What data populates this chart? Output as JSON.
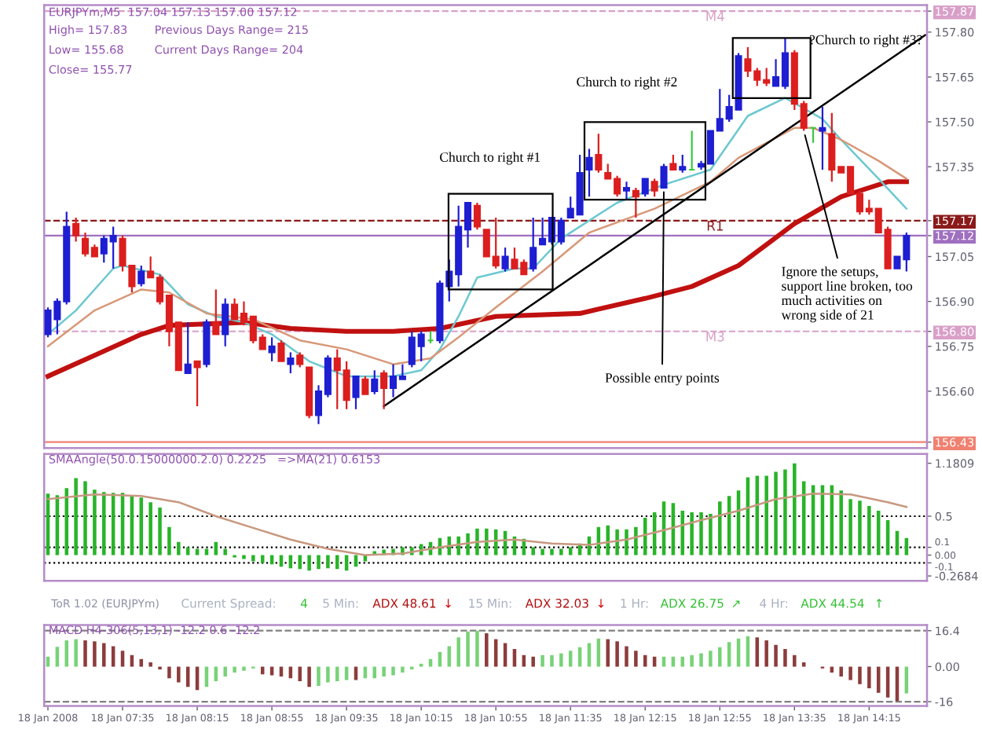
{
  "chart_data": [
    {
      "type": "candlestick",
      "title": "EURJPYm,M5  157.04 157.13 157.00 157.12",
      "tick_labels": "y",
      "annotations": [
        "High= 157.83",
        "Previous Days Range= 215",
        "Low= 155.68",
        "Current Days Range= 204",
        "Close= 155.77",
        "Church to right #1",
        "Church to right #2",
        "?Church to right #3?",
        {
          "text": "Possible entry points",
          "x": "2008-01-18T12:25",
          "y": 157.28
        },
        {
          "text": "Ignore the setups,\nsupport line broken, too\nmuch activities on\nwrong side of 21",
          "x": "2008-01-18T13:40",
          "y": 157.47
        }
      ],
      "x": [
        "2008-01-18T06:55",
        "2008-01-18T07:00",
        "2008-01-18T07:05",
        "2008-01-18T07:10",
        "2008-01-18T07:15",
        "2008-01-18T07:20",
        "2008-01-18T07:25",
        "2008-01-18T07:30",
        "2008-01-18T07:35",
        "2008-01-18T07:40",
        "2008-01-18T07:45",
        "2008-01-18T07:50",
        "2008-01-18T07:55",
        "2008-01-18T08:00",
        "2008-01-18T08:05",
        "2008-01-18T08:10",
        "2008-01-18T08:15",
        "2008-01-18T08:20",
        "2008-01-18T08:25",
        "2008-01-18T08:30",
        "2008-01-18T08:35",
        "2008-01-18T08:40",
        "2008-01-18T08:45",
        "2008-01-18T08:50",
        "2008-01-18T08:55",
        "2008-01-18T09:00",
        "2008-01-18T09:05",
        "2008-01-18T09:10",
        "2008-01-18T09:15",
        "2008-01-18T09:20",
        "2008-01-18T09:25",
        "2008-01-18T09:30",
        "2008-01-18T09:35",
        "2008-01-18T09:40",
        "2008-01-18T09:45",
        "2008-01-18T09:50",
        "2008-01-18T09:55",
        "2008-01-18T10:00",
        "2008-01-18T10:05",
        "2008-01-18T10:10",
        "2008-01-18T10:15",
        "2008-01-18T10:20",
        "2008-01-18T10:25",
        "2008-01-18T10:30",
        "2008-01-18T10:35",
        "2008-01-18T10:40",
        "2008-01-18T10:45",
        "2008-01-18T10:50",
        "2008-01-18T10:55",
        "2008-01-18T11:00",
        "2008-01-18T11:05",
        "2008-01-18T11:10",
        "2008-01-18T11:15",
        "2008-01-18T11:20",
        "2008-01-18T11:25",
        "2008-01-18T11:30",
        "2008-01-18T11:35",
        "2008-01-18T11:40",
        "2008-01-18T11:45",
        "2008-01-18T11:50",
        "2008-01-18T11:55",
        "2008-01-18T12:00",
        "2008-01-18T12:05",
        "2008-01-18T12:10",
        "2008-01-18T12:15",
        "2008-01-18T12:20",
        "2008-01-18T12:25",
        "2008-01-18T12:30",
        "2008-01-18T12:35",
        "2008-01-18T12:40",
        "2008-01-18T12:45",
        "2008-01-18T12:50",
        "2008-01-18T12:55",
        "2008-01-18T13:00",
        "2008-01-18T13:05",
        "2008-01-18T13:10",
        "2008-01-18T13:15",
        "2008-01-18T13:20",
        "2008-01-18T13:25",
        "2008-01-18T13:30",
        "2008-01-18T13:35",
        "2008-01-18T13:40",
        "2008-01-18T13:45",
        "2008-01-18T13:50",
        "2008-01-18T13:55",
        "2008-01-18T14:00",
        "2008-01-18T14:05",
        "2008-01-18T14:10",
        "2008-01-18T14:15",
        "2008-01-18T14:20",
        "2008-01-18T14:25",
        "2008-01-18T14:30",
        "2008-01-18T14:35"
      ],
      "ohlc": [
        [
          156.79,
          156.88,
          156.78,
          156.87
        ],
        [
          156.84,
          156.91,
          156.79,
          156.9
        ],
        [
          156.9,
          157.2,
          156.89,
          157.15
        ],
        [
          157.16,
          157.18,
          157.1,
          157.12
        ],
        [
          157.11,
          157.13,
          157.05,
          157.06
        ],
        [
          157.08,
          157.09,
          157.05,
          157.05
        ],
        [
          157.06,
          157.12,
          157.03,
          157.11
        ],
        [
          157.1,
          157.15,
          157.01,
          157.12
        ],
        [
          157.11,
          157.12,
          157.0,
          157.02
        ],
        [
          157.02,
          157.02,
          156.93,
          156.95
        ],
        [
          156.96,
          157.02,
          156.95,
          157.0
        ],
        [
          157.0,
          157.05,
          156.98,
          156.98
        ],
        [
          156.98,
          156.99,
          156.89,
          156.9
        ],
        [
          156.92,
          156.92,
          156.75,
          156.8
        ],
        [
          156.83,
          156.83,
          156.67,
          156.67
        ],
        [
          156.66,
          156.83,
          156.66,
          156.69
        ],
        [
          156.7,
          156.7,
          156.55,
          156.68
        ],
        [
          156.69,
          156.84,
          156.68,
          156.83
        ],
        [
          156.83,
          156.94,
          156.79,
          156.79
        ],
        [
          156.79,
          156.91,
          156.75,
          156.89
        ],
        [
          156.89,
          156.91,
          156.84,
          156.84
        ],
        [
          156.86,
          156.9,
          156.82,
          156.83
        ],
        [
          156.85,
          156.85,
          156.76,
          156.77
        ],
        [
          156.78,
          156.79,
          156.74,
          156.74
        ],
        [
          156.73,
          156.78,
          156.7,
          156.75
        ],
        [
          156.76,
          156.77,
          156.7,
          156.7
        ],
        [
          156.69,
          156.73,
          156.66,
          156.71
        ],
        [
          156.72,
          156.73,
          156.68,
          156.69
        ],
        [
          156.68,
          156.68,
          156.51,
          156.52
        ],
        [
          156.52,
          156.62,
          156.49,
          156.6
        ],
        [
          156.59,
          156.72,
          156.58,
          156.71
        ],
        [
          156.71,
          156.74,
          156.54,
          156.67
        ],
        [
          156.67,
          156.7,
          156.54,
          156.57
        ],
        [
          156.58,
          156.65,
          156.54,
          156.65
        ],
        [
          156.64,
          156.65,
          156.59,
          156.59
        ],
        [
          156.6,
          156.67,
          156.59,
          156.64
        ],
        [
          156.66,
          156.67,
          156.54,
          156.61
        ],
        [
          156.61,
          156.69,
          156.58,
          156.65
        ],
        [
          156.64,
          156.69,
          156.64,
          156.65
        ],
        [
          156.69,
          156.8,
          156.68,
          156.78
        ],
        [
          156.75,
          156.8,
          156.7,
          156.79
        ],
        [
          156.77,
          156.8,
          156.76,
          156.77
        ],
        [
          156.77,
          156.97,
          156.76,
          156.96
        ],
        [
          156.95,
          157.04,
          156.9,
          157.0
        ],
        [
          156.99,
          157.22,
          156.95,
          157.15
        ],
        [
          157.14,
          157.23,
          157.08,
          157.23
        ],
        [
          157.22,
          157.23,
          157.14,
          157.15
        ],
        [
          157.14,
          157.14,
          157.05,
          157.05
        ],
        [
          157.05,
          157.18,
          157.01,
          157.02
        ],
        [
          157.01,
          157.08,
          157.0,
          157.05
        ],
        [
          157.04,
          157.08,
          157.01,
          157.01
        ],
        [
          157.03,
          157.04,
          156.99,
          156.99
        ],
        [
          157.01,
          157.18,
          157.0,
          157.08
        ],
        [
          157.09,
          157.18,
          157.09,
          157.11
        ],
        [
          157.1,
          157.18,
          157.09,
          157.18
        ],
        [
          157.1,
          157.18,
          157.09,
          157.17
        ],
        [
          157.18,
          157.25,
          157.18,
          157.21
        ],
        [
          157.19,
          157.39,
          157.19,
          157.33
        ],
        [
          157.34,
          157.41,
          157.25,
          157.38
        ],
        [
          157.39,
          157.46,
          157.33,
          157.34
        ],
        [
          157.33,
          157.36,
          157.31,
          157.31
        ],
        [
          157.31,
          157.32,
          157.25,
          157.26
        ],
        [
          157.27,
          157.3,
          157.24,
          157.28
        ],
        [
          157.27,
          157.28,
          157.18,
          157.25
        ],
        [
          157.26,
          157.31,
          157.25,
          157.31
        ],
        [
          157.3,
          157.31,
          157.25,
          157.27
        ],
        [
          157.28,
          157.36,
          157.28,
          157.35
        ],
        [
          157.36,
          157.39,
          157.34,
          157.34
        ],
        [
          157.34,
          157.39,
          157.33,
          157.35
        ],
        [
          157.34,
          157.47,
          157.34,
          157.34
        ],
        [
          157.35,
          157.37,
          157.34,
          157.36
        ],
        [
          157.36,
          157.47,
          157.36,
          157.47
        ],
        [
          157.47,
          157.61,
          157.47,
          157.51
        ],
        [
          157.51,
          157.59,
          157.5,
          157.55
        ],
        [
          157.54,
          157.73,
          157.54,
          157.72
        ],
        [
          157.71,
          157.75,
          157.65,
          157.67
        ],
        [
          157.67,
          157.68,
          157.62,
          157.64
        ],
        [
          157.64,
          157.68,
          157.62,
          157.63
        ],
        [
          157.62,
          157.71,
          157.62,
          157.65
        ],
        [
          157.62,
          157.78,
          157.61,
          157.73
        ],
        [
          157.73,
          157.74,
          157.54,
          157.56
        ],
        [
          157.56,
          157.57,
          157.47,
          157.48
        ],
        [
          157.48,
          157.48,
          157.43,
          157.48
        ],
        [
          157.47,
          157.55,
          157.34,
          157.48
        ],
        [
          157.46,
          157.53,
          157.3,
          157.34
        ],
        [
          157.35,
          157.35,
          157.33,
          157.33
        ],
        [
          157.35,
          157.35,
          157.26,
          157.26
        ],
        [
          157.26,
          157.27,
          157.19,
          157.2
        ],
        [
          157.21,
          157.24,
          157.19,
          157.2
        ],
        [
          157.21,
          157.21,
          157.13,
          157.13
        ],
        [
          157.14,
          157.15,
          157.01,
          157.01
        ],
        [
          157.01,
          157.05,
          157.01,
          157.05
        ],
        [
          157.04,
          157.13,
          157.0,
          157.12
        ]
      ],
      "colors": [
        "#1e1ed2",
        "#1e1ed2",
        "#1e1ed2",
        "#dc1e1e",
        "#dc1e1e",
        "#dc1e1e",
        "#1e1ed2",
        "#1e1ed2",
        "#dc1e1e",
        "#dc1e1e",
        "#1e1ed2",
        "#dc1e1e",
        "#dc1e1e",
        "#dc1e1e",
        "#dc1e1e",
        "#1e1ed2",
        "#dc1e1e",
        "#1e1ed2",
        "#dc1e1e",
        "#1e1ed2",
        "#dc1e1e",
        "#dc1e1e",
        "#dc1e1e",
        "#dc1e1e",
        "#1e1ed2",
        "#dc1e1e",
        "#1e1ed2",
        "#dc1e1e",
        "#dc1e1e",
        "#1e1ed2",
        "#1e1ed2",
        "#dc1e1e",
        "#dc1e1e",
        "#1e1ed2",
        "#dc1e1e",
        "#1e1ed2",
        "#dc1e1e",
        "#1e1ed2",
        "#1e1ed2",
        "#1e1ed2",
        "#1e1ed2",
        "#3cc83c",
        "#1e1ed2",
        "#1e1ed2",
        "#1e1ed2",
        "#1e1ed2",
        "#dc1e1e",
        "#dc1e1e",
        "#dc1e1e",
        "#1e1ed2",
        "#dc1e1e",
        "#dc1e1e",
        "#1e1ed2",
        "#1e1ed2",
        "#1e1ed2",
        "#1e1ed2",
        "#1e1ed2",
        "#1e1ed2",
        "#1e1ed2",
        "#dc1e1e",
        "#dc1e1e",
        "#dc1e1e",
        "#1e1ed2",
        "#dc1e1e",
        "#1e1ed2",
        "#dc1e1e",
        "#1e1ed2",
        "#dc1e1e",
        "#1e1ed2",
        "#3cc83c",
        "#1e1ed2",
        "#1e1ed2",
        "#1e1ed2",
        "#1e1ed2",
        "#1e1ed2",
        "#dc1e1e",
        "#dc1e1e",
        "#dc1e1e",
        "#1e1ed2",
        "#1e1ed2",
        "#dc1e1e",
        "#dc1e1e",
        "#3cc83c",
        "#1e1ed2",
        "#dc1e1e",
        "#dc1e1e",
        "#dc1e1e",
        "#dc1e1e",
        "#dc1e1e",
        "#dc1e1e",
        "#dc1e1e",
        "#1e1ed2",
        "#1e1ed2"
      ],
      "series": [
        {
          "type": "line",
          "color": "#c01010",
          "x": [
            "2008-01-18T06:55",
            "2008-01-18T07:20",
            "2008-01-18T07:45",
            "2008-01-18T08:00",
            "2008-01-18T08:40",
            "2008-01-18T09:05",
            "2008-01-18T09:35",
            "2008-01-18T10:00",
            "2008-01-18T10:25",
            "2008-01-18T10:55",
            "2008-01-18T11:40",
            "2008-01-18T12:15",
            "2008-01-18T12:40",
            "2008-01-18T13:05",
            "2008-01-18T13:35",
            "2008-01-18T14:00",
            "2008-01-18T14:25",
            "2008-01-18T14:35"
          ],
          "values": [
            156.65,
            156.72,
            156.79,
            156.82,
            156.83,
            156.81,
            156.8,
            156.8,
            156.81,
            156.85,
            156.86,
            156.91,
            156.95,
            157.02,
            157.16,
            157.25,
            157.3,
            157.3
          ]
        },
        {
          "type": "line",
          "color": "#6cc8d0",
          "x": [
            "2008-01-18T06:55",
            "2008-01-18T07:10",
            "2008-01-18T07:30",
            "2008-01-18T07:35",
            "2008-01-18T07:55",
            "2008-01-18T08:10",
            "2008-01-18T08:25",
            "2008-01-18T08:40",
            "2008-01-18T08:55",
            "2008-01-18T09:15",
            "2008-01-18T09:35",
            "2008-01-18T10:00",
            "2008-01-18T10:15",
            "2008-01-18T10:25",
            "2008-01-18T10:35",
            "2008-01-18T10:45",
            "2008-01-18T11:05",
            "2008-01-18T11:15",
            "2008-01-18T11:30",
            "2008-01-18T12:00",
            "2008-01-18T12:25",
            "2008-01-18T12:50",
            "2008-01-18T13:00",
            "2008-01-18T13:10",
            "2008-01-18T13:30",
            "2008-01-18T13:50",
            "2008-01-18T14:00",
            "2008-01-18T14:20",
            "2008-01-18T14:35"
          ],
          "values": [
            156.79,
            156.87,
            157.01,
            157.02,
            156.99,
            156.89,
            156.85,
            156.83,
            156.79,
            156.7,
            156.65,
            156.65,
            156.67,
            156.74,
            156.85,
            156.98,
            157.01,
            157.01,
            157.11,
            157.23,
            157.29,
            157.34,
            157.43,
            157.52,
            157.58,
            157.51,
            157.44,
            157.31,
            157.21
          ]
        },
        {
          "type": "line",
          "color": "#d89878",
          "x": [
            "2008-01-18T06:55",
            "2008-01-18T07:20",
            "2008-01-18T07:45",
            "2008-01-18T08:00",
            "2008-01-18T08:20",
            "2008-01-18T08:45",
            "2008-01-18T09:10",
            "2008-01-18T09:35",
            "2008-01-18T10:00",
            "2008-01-18T10:20",
            "2008-01-18T10:35",
            "2008-01-18T10:55",
            "2008-01-18T11:20",
            "2008-01-18T11:45",
            "2008-01-18T12:20",
            "2008-01-18T12:50",
            "2008-01-18T13:05",
            "2008-01-18T13:35",
            "2008-01-18T13:45",
            "2008-01-18T14:00",
            "2008-01-18T14:20",
            "2008-01-18T14:35"
          ],
          "values": [
            156.75,
            156.87,
            156.94,
            156.93,
            156.86,
            156.84,
            156.77,
            156.74,
            156.69,
            156.71,
            156.78,
            156.88,
            157.0,
            157.13,
            157.21,
            157.3,
            157.38,
            157.48,
            157.48,
            157.44,
            157.37,
            157.31
          ]
        },
        {
          "type": "line",
          "color": "#000000",
          "x": [
            "2008-01-18T09:55",
            "2008-01-18T14:45"
          ],
          "values": [
            156.55,
            157.79
          ]
        }
      ],
      "xlim": [
        "2008-01-18T06:53",
        "2008-01-18T14:46"
      ],
      "ylim": [
        156.41,
        157.89
      ],
      "yticks": [
        {
          "value": 157.87,
          "label": "157.87"
        },
        {
          "value": 157.8,
          "label": "157.80"
        },
        157.65,
        {
          "value": 157.5,
          "label": "157.50"
        },
        157.35,
        157.17,
        157.12,
        157.05,
        {
          "value": 156.9,
          "label": "156.90"
        },
        {
          "value": 156.8,
          "label": "156.80"
        },
        156.75,
        {
          "value": 156.6,
          "label": "156.60"
        },
        156.43
      ],
      "ref_lines": [
        {
          "axis": "y",
          "value": 157.87,
          "label": "M4",
          "color": "#d8a0c8",
          "line_style": "dashed"
        },
        {
          "axis": "y",
          "value": 157.17,
          "label": "R1",
          "color": "#8b1a1a",
          "line_style": "dashed"
        },
        {
          "axis": "y",
          "value": 157.12,
          "color": "#a070c0",
          "line_style": "solid"
        },
        {
          "axis": "y",
          "value": 156.8,
          "label": "M3",
          "color": "#d8a0c8",
          "line_style": "dashed"
        },
        {
          "axis": "y",
          "value": 156.43,
          "color": "#f08070",
          "line_style": "solid"
        }
      ]
    },
    {
      "type": "bar",
      "title": "SMAAngle(50.0.15000000.2.0) 0.2225   =>MA(21) 0.6153",
      "tick_labels": "y",
      "x": [
        "2008-01-18T06:55",
        "2008-01-18T07:00",
        "2008-01-18T07:05",
        "2008-01-18T07:10",
        "2008-01-18T07:15",
        "2008-01-18T07:20",
        "2008-01-18T07:25",
        "2008-01-18T07:30",
        "2008-01-18T07:35",
        "2008-01-18T07:40",
        "2008-01-18T07:45",
        "2008-01-18T07:50",
        "2008-01-18T07:55",
        "2008-01-18T08:00",
        "2008-01-18T08:05",
        "2008-01-18T08:10",
        "2008-01-18T08:15",
        "2008-01-18T08:20",
        "2008-01-18T08:25",
        "2008-01-18T08:30",
        "2008-01-18T08:35",
        "2008-01-18T08:40",
        "2008-01-18T08:45",
        "2008-01-18T08:50",
        "2008-01-18T08:55",
        "2008-01-18T09:00",
        "2008-01-18T09:05",
        "2008-01-18T09:10",
        "2008-01-18T09:15",
        "2008-01-18T09:20",
        "2008-01-18T09:25",
        "2008-01-18T09:30",
        "2008-01-18T09:35",
        "2008-01-18T09:40",
        "2008-01-18T09:45",
        "2008-01-18T09:50",
        "2008-01-18T09:55",
        "2008-01-18T10:00",
        "2008-01-18T10:05",
        "2008-01-18T10:10",
        "2008-01-18T10:15",
        "2008-01-18T10:20",
        "2008-01-18T10:25",
        "2008-01-18T10:30",
        "2008-01-18T10:35",
        "2008-01-18T10:40",
        "2008-01-18T10:45",
        "2008-01-18T10:50",
        "2008-01-18T10:55",
        "2008-01-18T11:00",
        "2008-01-18T11:05",
        "2008-01-18T11:10",
        "2008-01-18T11:15",
        "2008-01-18T11:20",
        "2008-01-18T11:25",
        "2008-01-18T11:30",
        "2008-01-18T11:35",
        "2008-01-18T11:40",
        "2008-01-18T11:45",
        "2008-01-18T11:50",
        "2008-01-18T11:55",
        "2008-01-18T12:00",
        "2008-01-18T12:05",
        "2008-01-18T12:10",
        "2008-01-18T12:15",
        "2008-01-18T12:20",
        "2008-01-18T12:25",
        "2008-01-18T12:30",
        "2008-01-18T12:35",
        "2008-01-18T12:40",
        "2008-01-18T12:45",
        "2008-01-18T12:50",
        "2008-01-18T12:55",
        "2008-01-18T13:00",
        "2008-01-18T13:05",
        "2008-01-18T13:10",
        "2008-01-18T13:15",
        "2008-01-18T13:20",
        "2008-01-18T13:25",
        "2008-01-18T13:30",
        "2008-01-18T13:35",
        "2008-01-18T13:40",
        "2008-01-18T13:45",
        "2008-01-18T13:50",
        "2008-01-18T13:55",
        "2008-01-18T14:00",
        "2008-01-18T14:05",
        "2008-01-18T14:10",
        "2008-01-18T14:15",
        "2008-01-18T14:20",
        "2008-01-18T14:25",
        "2008-01-18T14:30",
        "2008-01-18T14:35"
      ],
      "series": [
        {
          "type": "bar",
          "color": "#28b428",
          "values": [
            0.79,
            0.77,
            0.86,
            0.99,
            0.95,
            0.84,
            0.81,
            0.8,
            0.8,
            0.77,
            0.74,
            0.68,
            0.61,
            0.36,
            0.17,
            0.1,
            0.08,
            0.08,
            0.17,
            0.08,
            -0.03,
            -0.05,
            -0.08,
            -0.1,
            -0.12,
            -0.15,
            -0.17,
            -0.18,
            -0.2,
            -0.18,
            -0.17,
            -0.18,
            -0.2,
            -0.15,
            -0.08,
            0.05,
            0.07,
            0.08,
            0.1,
            0.1,
            0.14,
            0.17,
            0.22,
            0.24,
            0.24,
            0.28,
            0.34,
            0.34,
            0.33,
            0.31,
            0.24,
            0.21,
            0.1,
            0.08,
            0.08,
            0.08,
            0.1,
            0.15,
            0.24,
            0.36,
            0.38,
            0.33,
            0.33,
            0.36,
            0.48,
            0.55,
            0.69,
            0.67,
            0.57,
            0.55,
            0.55,
            0.53,
            0.69,
            0.76,
            0.83,
            1.0,
            1.02,
            1.02,
            1.07,
            1.1,
            1.18,
            0.95,
            0.9,
            0.9,
            0.9,
            0.83,
            0.72,
            0.7,
            0.63,
            0.57,
            0.45,
            0.31,
            0.22
          ]
        },
        {
          "type": "line",
          "color": "#c89880",
          "x": [
            "2008-01-18T06:55",
            "2008-01-18T07:20",
            "2008-01-18T07:45",
            "2008-01-18T08:05",
            "2008-01-18T08:25",
            "2008-01-18T08:45",
            "2008-01-18T09:05",
            "2008-01-18T09:25",
            "2008-01-18T09:45",
            "2008-01-18T10:05",
            "2008-01-18T10:25",
            "2008-01-18T10:45",
            "2008-01-18T11:05",
            "2008-01-18T11:25",
            "2008-01-18T11:45",
            "2008-01-18T12:05",
            "2008-01-18T12:25",
            "2008-01-18T12:45",
            "2008-01-18T13:05",
            "2008-01-18T13:25",
            "2008-01-18T13:45",
            "2008-01-18T14:05",
            "2008-01-18T14:25",
            "2008-01-18T14:35"
          ],
          "values": [
            0.72,
            0.78,
            0.76,
            0.68,
            0.5,
            0.35,
            0.2,
            0.08,
            0.0,
            0.02,
            0.1,
            0.17,
            0.2,
            0.15,
            0.13,
            0.2,
            0.32,
            0.45,
            0.57,
            0.72,
            0.79,
            0.78,
            0.68,
            0.62
          ]
        }
      ],
      "xlim": [
        "2008-01-18T06:53",
        "2008-01-18T14:46"
      ],
      "ylim": [
        -0.33,
        1.3
      ],
      "yticks": [
        1.1809,
        0.5,
        0.1,
        {
          "value": 0,
          "label": "0.00"
        },
        -0.1,
        -0.2684
      ],
      "ref_lines": [
        {
          "axis": "y",
          "value": 0.5,
          "color": "#000000",
          "line_style": "dotted"
        },
        {
          "axis": "y",
          "value": 0.1,
          "color": "#000000",
          "line_style": "dotted"
        },
        {
          "axis": "y",
          "value": -0.1,
          "color": "#000000",
          "line_style": "dotted"
        }
      ]
    },
    {
      "type": "other",
      "title": "ToR 1.02 (EURJPYm)",
      "annotations": [
        "Current Spread:",
        "4",
        "5 Min:",
        "ADX 48.61",
        "↓",
        "15 Min:",
        "ADX 32.03",
        "↓",
        "1 Hr:",
        "ADX 26.75",
        "↗",
        "4 Hr:",
        "ADX 44.54",
        "↑"
      ],
      "colors": [
        "#a8b0c0",
        "#30c030",
        "#a8b0c0",
        "#b01010",
        "#d01010",
        "#a8b0c0",
        "#b01010",
        "#d01010",
        "#a8b0c0",
        "#30c030",
        "#30c030",
        "#a8b0c0",
        "#30c030",
        "#30c030"
      ]
    },
    {
      "type": "bar",
      "title": "MACD H4-306(5,13,1) -12.2 0.6 -12.2",
      "x": [
        "2008-01-18T06:55",
        "2008-01-18T07:00",
        "2008-01-18T07:05",
        "2008-01-18T07:10",
        "2008-01-18T07:15",
        "2008-01-18T07:20",
        "2008-01-18T07:25",
        "2008-01-18T07:30",
        "2008-01-18T07:35",
        "2008-01-18T07:40",
        "2008-01-18T07:45",
        "2008-01-18T07:50",
        "2008-01-18T07:55",
        "2008-01-18T08:00",
        "2008-01-18T08:05",
        "2008-01-18T08:10",
        "2008-01-18T08:15",
        "2008-01-18T08:20",
        "2008-01-18T08:25",
        "2008-01-18T08:30",
        "2008-01-18T08:35",
        "2008-01-18T08:40",
        "2008-01-18T08:45",
        "2008-01-18T08:50",
        "2008-01-18T08:55",
        "2008-01-18T09:00",
        "2008-01-18T09:05",
        "2008-01-18T09:10",
        "2008-01-18T09:15",
        "2008-01-18T09:20",
        "2008-01-18T09:25",
        "2008-01-18T09:30",
        "2008-01-18T09:35",
        "2008-01-18T09:40",
        "2008-01-18T09:45",
        "2008-01-18T09:50",
        "2008-01-18T09:55",
        "2008-01-18T10:00",
        "2008-01-18T10:05",
        "2008-01-18T10:10",
        "2008-01-18T10:15",
        "2008-01-18T10:20",
        "2008-01-18T10:25",
        "2008-01-18T10:30",
        "2008-01-18T10:35",
        "2008-01-18T10:40",
        "2008-01-18T10:45",
        "2008-01-18T10:50",
        "2008-01-18T10:55",
        "2008-01-18T11:00",
        "2008-01-18T11:05",
        "2008-01-18T11:10",
        "2008-01-18T11:15",
        "2008-01-18T11:20",
        "2008-01-18T11:25",
        "2008-01-18T11:30",
        "2008-01-18T11:35",
        "2008-01-18T11:40",
        "2008-01-18T11:45",
        "2008-01-18T11:50",
        "2008-01-18T11:55",
        "2008-01-18T12:00",
        "2008-01-18T12:05",
        "2008-01-18T12:10",
        "2008-01-18T12:15",
        "2008-01-18T12:20",
        "2008-01-18T12:25",
        "2008-01-18T12:30",
        "2008-01-18T12:35",
        "2008-01-18T12:40",
        "2008-01-18T12:45",
        "2008-01-18T12:50",
        "2008-01-18T12:55",
        "2008-01-18T13:00",
        "2008-01-18T13:05",
        "2008-01-18T13:10",
        "2008-01-18T13:15",
        "2008-01-18T13:20",
        "2008-01-18T13:25",
        "2008-01-18T13:30",
        "2008-01-18T13:35",
        "2008-01-18T13:40",
        "2008-01-18T13:45",
        "2008-01-18T13:50",
        "2008-01-18T13:55",
        "2008-01-18T14:00",
        "2008-01-18T14:05",
        "2008-01-18T14:10",
        "2008-01-18T14:15",
        "2008-01-18T14:20",
        "2008-01-18T14:25",
        "2008-01-18T14:30",
        "2008-01-18T14:35"
      ],
      "series": [
        {
          "type": "bar",
          "values": [
            4.5,
            9,
            12,
            12.5,
            12,
            11.5,
            10.7,
            9.3,
            7.2,
            5.3,
            3.5,
            1.9,
            -1.3,
            -5.3,
            -7.2,
            -9.3,
            -10.7,
            -9.3,
            -6.7,
            -4.5,
            -2.7,
            -1.9,
            -0.8,
            -3.5,
            -4,
            -4.5,
            -5.3,
            -6.7,
            -9.3,
            -8.8,
            -7.2,
            -6.7,
            -6.1,
            -6.1,
            -5.3,
            -5.3,
            -4.5,
            -4,
            -2.7,
            -1.3,
            1.3,
            3.5,
            6.7,
            9.3,
            13.3,
            16,
            16.4,
            15.2,
            12.5,
            10.7,
            8,
            5.3,
            4.5,
            5.3,
            5.3,
            6.1,
            7.2,
            8.8,
            10.7,
            12.8,
            12.5,
            11.5,
            9.3,
            7.2,
            5.3,
            4.5,
            4.5,
            4.5,
            4.5,
            5.3,
            6.1,
            7.2,
            8.8,
            11.2,
            12.8,
            13.9,
            13.3,
            12,
            9.9,
            8,
            5.3,
            1.9,
            0,
            -0.8,
            -2.7,
            -4.5,
            -6.1,
            -8,
            -9.9,
            -12,
            -14.1,
            -15.7,
            -12.2
          ],
          "colors": [
            "#78d278",
            "#78d278",
            "#78d278",
            "#78d278",
            "#8c3c3c",
            "#8c3c3c",
            "#8c3c3c",
            "#8c3c3c",
            "#8c3c3c",
            "#8c3c3c",
            "#8c3c3c",
            "#8c3c3c",
            "#8c3c3c",
            "#8c3c3c",
            "#8c3c3c",
            "#8c3c3c",
            "#8c3c3c",
            "#78d278",
            "#78d278",
            "#78d278",
            "#78d278",
            "#78d278",
            "#78d278",
            "#8c3c3c",
            "#8c3c3c",
            "#8c3c3c",
            "#8c3c3c",
            "#8c3c3c",
            "#8c3c3c",
            "#78d278",
            "#78d278",
            "#78d278",
            "#78d278",
            "#8c3c3c",
            "#78d278",
            "#78d278",
            "#78d278",
            "#78d278",
            "#78d278",
            "#78d278",
            "#78d278",
            "#78d278",
            "#78d278",
            "#78d278",
            "#78d278",
            "#78d278",
            "#78d278",
            "#8c3c3c",
            "#8c3c3c",
            "#8c3c3c",
            "#8c3c3c",
            "#8c3c3c",
            "#8c3c3c",
            "#78d278",
            "#78d278",
            "#78d278",
            "#78d278",
            "#78d278",
            "#78d278",
            "#78d278",
            "#8c3c3c",
            "#8c3c3c",
            "#8c3c3c",
            "#8c3c3c",
            "#8c3c3c",
            "#8c3c3c",
            "#78d278",
            "#78d278",
            "#78d278",
            "#78d278",
            "#78d278",
            "#78d278",
            "#78d278",
            "#78d278",
            "#78d278",
            "#78d278",
            "#8c3c3c",
            "#8c3c3c",
            "#8c3c3c",
            "#8c3c3c",
            "#8c3c3c",
            "#8c3c3c",
            "#8c3c3c",
            "#8c3c3c",
            "#8c3c3c",
            "#8c3c3c",
            "#8c3c3c",
            "#8c3c3c",
            "#8c3c3c",
            "#8c3c3c",
            "#8c3c3c",
            "#8c3c3c",
            "#78d278"
          ]
        }
      ],
      "xlim": [
        "2008-01-18T06:53",
        "2008-01-18T14:46"
      ],
      "ylim": [
        -18,
        19
      ],
      "yticks": [
        16.4,
        {
          "value": 0,
          "label": "0.00"
        },
        -16
      ],
      "xticks": [
        {
          "value": "2008-01-18T06:55",
          "label": "18 Jan 2008"
        },
        {
          "value": "2008-01-18T07:35",
          "label": "18 Jan 07:35"
        },
        {
          "value": "2008-01-18T08:15",
          "label": "18 Jan 08:15"
        },
        {
          "value": "2008-01-18T08:55",
          "label": "18 Jan 08:55"
        },
        {
          "value": "2008-01-18T09:35",
          "label": "18 Jan 09:35"
        },
        {
          "value": "2008-01-18T10:15",
          "label": "18 Jan 10:15"
        },
        {
          "value": "2008-01-18T10:55",
          "label": "18 Jan 10:55"
        },
        {
          "value": "2008-01-18T11:35",
          "label": "18 Jan 11:35"
        },
        {
          "value": "2008-01-18T12:15",
          "label": "18 Jan 12:15"
        },
        {
          "value": "2008-01-18T12:55",
          "label": "18 Jan 12:55"
        },
        {
          "value": "2008-01-18T13:35",
          "label": "18 Jan 13:35"
        },
        {
          "value": "2008-01-18T14:15",
          "label": "18 Jan 14:15"
        }
      ],
      "ref_lines": [
        {
          "axis": "y",
          "value": 16.4,
          "color": "#808080",
          "line_style": "dashed"
        },
        {
          "axis": "y",
          "value": -16,
          "color": "#808080",
          "line_style": "dashed"
        }
      ]
    }
  ]
}
